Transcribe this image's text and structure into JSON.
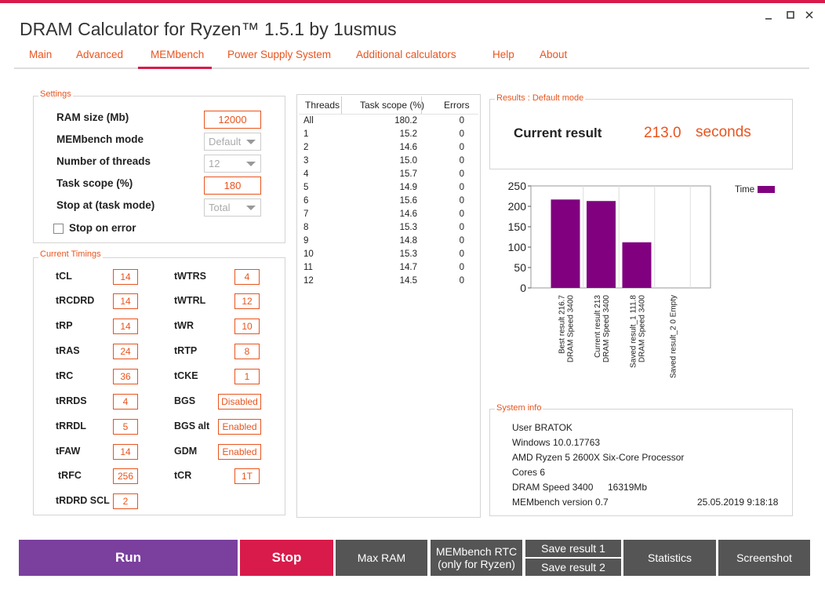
{
  "window": {
    "title": "DRAM Calculator for Ryzen™ 1.5.1 by 1usmus"
  },
  "tabs": [
    "Main",
    "Advanced",
    "MEMbench",
    "Power Supply System",
    "Additional calculators",
    "Help",
    "About"
  ],
  "settings": {
    "title": "Settings",
    "rows": [
      {
        "label": "RAM size (Mb)",
        "value": "12000"
      },
      {
        "label": "MEMbench mode",
        "value": "Default"
      },
      {
        "label": "Number of threads",
        "value": "12"
      },
      {
        "label": "Task scope (%)",
        "value": "180"
      },
      {
        "label": "Stop at (task mode)",
        "value": "Total"
      }
    ],
    "checkbox": "Stop on error"
  },
  "timings": {
    "title": "Current Timings",
    "left": [
      {
        "label": "tCL",
        "value": "14"
      },
      {
        "label": "tRCDRD",
        "value": "14"
      },
      {
        "label": "tRP",
        "value": "14"
      },
      {
        "label": "tRAS",
        "value": "24"
      },
      {
        "label": "tRC",
        "value": "36"
      },
      {
        "label": "tRRDS",
        "value": "4"
      },
      {
        "label": "tRRDL",
        "value": "5"
      },
      {
        "label": "tFAW",
        "value": "14"
      },
      {
        "label": "tRFC",
        "value": "256"
      },
      {
        "label": "tRDRD SCL",
        "value": "2"
      }
    ],
    "right": [
      {
        "label": "tWTRS",
        "value": "4"
      },
      {
        "label": "tWTRL",
        "value": "12"
      },
      {
        "label": "tWR",
        "value": "10"
      },
      {
        "label": "tRTP",
        "value": "8"
      },
      {
        "label": "tCKE",
        "value": "1"
      },
      {
        "label": "BGS",
        "value": "Disabled"
      },
      {
        "label": "BGS alt",
        "value": "Enabled"
      },
      {
        "label": "GDM",
        "value": "Enabled"
      },
      {
        "label": "tCR",
        "value": "1T"
      }
    ]
  },
  "threads": {
    "headers": [
      "Threads",
      "Task scope (%)",
      "Errors"
    ],
    "rows": [
      [
        "All",
        "180.2",
        "0"
      ],
      [
        "1",
        "15.2",
        "0"
      ],
      [
        "2",
        "14.6",
        "0"
      ],
      [
        "3",
        "15.0",
        "0"
      ],
      [
        "4",
        "15.7",
        "0"
      ],
      [
        "5",
        "14.9",
        "0"
      ],
      [
        "6",
        "15.6",
        "0"
      ],
      [
        "7",
        "14.6",
        "0"
      ],
      [
        "8",
        "15.3",
        "0"
      ],
      [
        "9",
        "14.8",
        "0"
      ],
      [
        "10",
        "15.3",
        "0"
      ],
      [
        "11",
        "14.7",
        "0"
      ],
      [
        "12",
        "14.5",
        "0"
      ]
    ]
  },
  "results": {
    "title": "Results : Default mode",
    "label": "Current result",
    "value": "213.0",
    "unit": "seconds"
  },
  "chart_data": {
    "type": "bar",
    "categories": [
      [
        "Best result 216.7",
        "DRAM Speed 3400"
      ],
      [
        "Current result 213",
        "DRAM Speed 3400"
      ],
      [
        "Saved result_1 111.8",
        "DRAM Speed 3400"
      ],
      [
        "Saved result_2 0 Empty"
      ]
    ],
    "series": [
      {
        "name": "Time",
        "color": "#800080",
        "values": [
          216.7,
          213,
          111.8,
          0
        ]
      }
    ],
    "ylim": [
      0,
      250
    ],
    "yticks": [
      0,
      50,
      100,
      150,
      200,
      250
    ],
    "legend": "top-right"
  },
  "system_info": {
    "title": "System info",
    "lines": [
      [
        "User BRATOK"
      ],
      [
        "Windows 10.0.17763"
      ],
      [
        "AMD Ryzen 5 2600X Six-Core Processor"
      ],
      [
        "Cores 6"
      ],
      [
        "DRAM Speed 3400",
        "16319Mb"
      ],
      [
        "MEMbench version 0.7",
        "25.05.2019 9:18:18"
      ]
    ]
  },
  "buttons": [
    [
      "Run"
    ],
    [
      "Stop"
    ],
    [
      "Max RAM"
    ],
    [
      "MEMbench RTC",
      "(only for Ryzen)"
    ],
    [
      "Save result 1"
    ],
    [
      "Save result 2"
    ],
    [
      "Statistics"
    ],
    [
      "Screenshot"
    ]
  ]
}
